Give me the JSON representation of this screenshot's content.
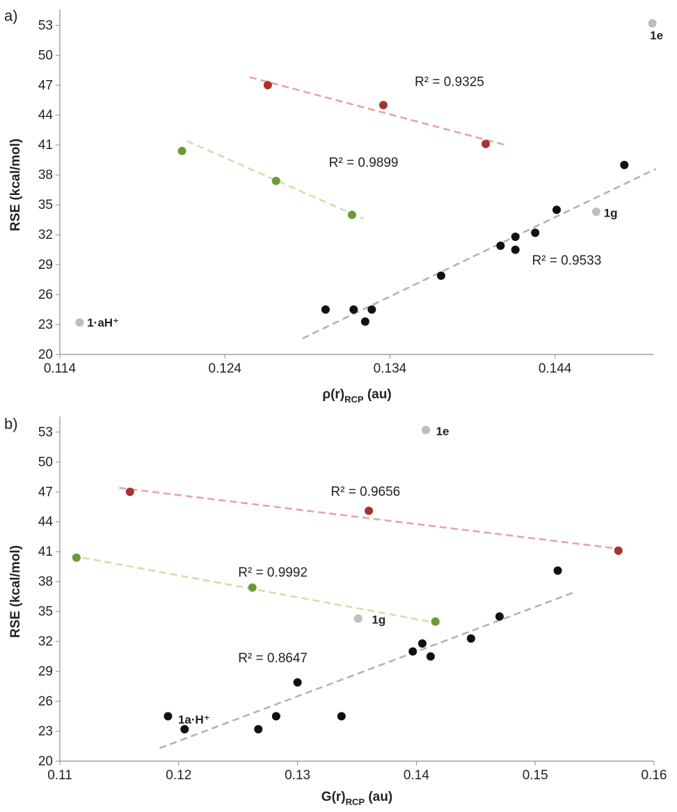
{
  "chart_data": [
    {
      "type": "scatter",
      "panel_label": "a)",
      "ylabel": "RSE (kcal/mol)",
      "xlabel_main": "ρ(r)",
      "xlabel_sub": "RCP",
      "xlabel_unit": " (au)",
      "xlim": [
        0.114,
        0.15
      ],
      "ylim": [
        20,
        54
      ],
      "xticks": [
        0.114,
        0.124,
        0.134,
        0.144
      ],
      "xtick_labels": [
        "0.114",
        "0.124",
        "0.134",
        "0.144"
      ],
      "yticks": [
        20,
        23,
        26,
        29,
        32,
        35,
        38,
        41,
        44,
        47,
        50,
        53
      ],
      "grid": false,
      "series": [
        {
          "color": "#a83232",
          "points": [
            [
              0.1266,
              47.0
            ],
            [
              0.1336,
              45.0
            ],
            [
              0.1398,
              41.1
            ]
          ],
          "trend": {
            "x": [
              0.1255,
              0.141
            ],
            "y": [
              47.8,
              41.0
            ],
            "color": "#e8a3a3"
          },
          "r2_label": "R² = 0.9325",
          "r2_pos": [
            0.1355,
            46.9
          ]
        },
        {
          "color": "#6c9a3a",
          "points": [
            [
              0.1214,
              40.4
            ],
            [
              0.1271,
              37.4
            ],
            [
              0.1317,
              34.0
            ]
          ],
          "trend": {
            "x": [
              0.1217,
              0.1324
            ],
            "y": [
              41.4,
              33.6
            ],
            "color": "#cfe0a8"
          },
          "r2_label": "R² = 0.9899",
          "r2_pos": [
            0.1303,
            38.8
          ]
        },
        {
          "color": "#111111",
          "points": [
            [
              0.1301,
              24.5
            ],
            [
              0.1318,
              24.5
            ],
            [
              0.1325,
              23.3
            ],
            [
              0.1329,
              24.5
            ],
            [
              0.1371,
              27.9
            ],
            [
              0.1407,
              30.9
            ],
            [
              0.1416,
              30.5
            ],
            [
              0.1416,
              31.8
            ],
            [
              0.1428,
              32.2
            ],
            [
              0.1441,
              34.5
            ],
            [
              0.1482,
              39.0
            ]
          ],
          "trend": {
            "x": [
              0.1287,
              0.1501
            ],
            "y": [
              21.6,
              38.6
            ],
            "color": "#b3b3b3"
          },
          "r2_label": "R² = 0.9533",
          "r2_pos": [
            0.1426,
            29.0
          ]
        },
        {
          "color": "#bdbdbd",
          "points": [
            [
              0.1152,
              23.2
            ],
            [
              0.1465,
              34.3
            ],
            [
              0.1499,
              53.2
            ]
          ]
        }
      ],
      "point_labels": [
        {
          "text": "1·aH⁺",
          "x": 0.1154,
          "y": 23.2
        },
        {
          "text": "1g",
          "x": 0.1467,
          "y": 34.2
        },
        {
          "text": "1e",
          "x": 0.1495,
          "y": 52.0
        }
      ]
    },
    {
      "type": "scatter",
      "panel_label": "b)",
      "ylabel": "RSE (kcal/mol)",
      "xlabel_main": "G(r)",
      "xlabel_sub": "RCP",
      "xlabel_unit": " (au)",
      "xlim": [
        0.11,
        0.16
      ],
      "ylim": [
        20,
        54
      ],
      "xticks": [
        0.11,
        0.12,
        0.13,
        0.14,
        0.15,
        0.16
      ],
      "xtick_labels": [
        "0.11",
        "0.12",
        "0.13",
        "0.14",
        "0.15",
        "0.16"
      ],
      "yticks": [
        20,
        23,
        26,
        29,
        32,
        35,
        38,
        41,
        44,
        47,
        50,
        53
      ],
      "grid": false,
      "series": [
        {
          "color": "#a83232",
          "points": [
            [
              0.1159,
              47.0
            ],
            [
              0.136,
              45.1
            ],
            [
              0.157,
              41.1
            ]
          ],
          "trend": {
            "x": [
              0.115,
              0.157
            ],
            "y": [
              47.4,
              41.3
            ],
            "color": "#e8a3a3"
          },
          "r2_label": "R² = 0.9656",
          "r2_pos": [
            0.1328,
            46.6
          ]
        },
        {
          "color": "#6c9a3a",
          "points": [
            [
              0.1114,
              40.4
            ],
            [
              0.1262,
              37.4
            ],
            [
              0.1416,
              34.0
            ]
          ],
          "trend": {
            "x": [
              0.111,
              0.142
            ],
            "y": [
              40.6,
              33.8
            ],
            "color": "#cfe0a8"
          },
          "r2_label": "R² = 0.9992",
          "r2_pos": [
            0.125,
            38.5
          ]
        },
        {
          "color": "#111111",
          "points": [
            [
              0.1191,
              24.5
            ],
            [
              0.1205,
              23.2
            ],
            [
              0.1267,
              23.2
            ],
            [
              0.1282,
              24.5
            ],
            [
              0.13,
              27.9
            ],
            [
              0.1337,
              24.5
            ],
            [
              0.1397,
              31.0
            ],
            [
              0.1405,
              31.8
            ],
            [
              0.1412,
              30.5
            ],
            [
              0.1446,
              32.3
            ],
            [
              0.147,
              34.5
            ],
            [
              0.1519,
              39.1
            ]
          ],
          "trend": {
            "x": [
              0.1184,
              0.1532
            ],
            "y": [
              21.3,
              36.9
            ],
            "color": "#b3b3b3"
          },
          "r2_label": "R² = 0.8647",
          "r2_pos": [
            0.125,
            29.9
          ]
        },
        {
          "color": "#bdbdbd",
          "points": [
            [
              0.1351,
              34.3
            ],
            [
              0.1408,
              53.2
            ]
          ]
        }
      ],
      "point_labels": [
        {
          "text": "1a·H⁺",
          "x": 0.1196,
          "y": 24.2
        },
        {
          "text": "1g",
          "x": 0.1359,
          "y": 34.2
        },
        {
          "text": "1e",
          "x": 0.1413,
          "y": 53.1
        }
      ]
    }
  ]
}
